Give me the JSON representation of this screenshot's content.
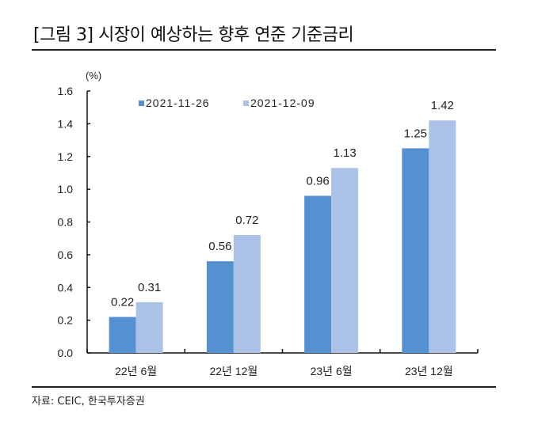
{
  "title": "[그림 3] 시장이 예상하는 향후 연준 기준금리",
  "source": "자료: CEIC, 한국투자증권",
  "chart_data": {
    "type": "bar",
    "title": "",
    "ylabel": "(%)",
    "xlabel": "",
    "ylim": [
      0,
      1.6
    ],
    "yticks": [
      "0.0",
      "0.2",
      "0.4",
      "0.6",
      "0.8",
      "1.0",
      "1.2",
      "1.4",
      "1.6"
    ],
    "categories": [
      "22년 6월",
      "22년 12월",
      "23년 6월",
      "23년 12월"
    ],
    "series": [
      {
        "name": "2021-11-26",
        "color": "#5591d0",
        "values": [
          0.22,
          0.56,
          0.96,
          1.25
        ],
        "labels": [
          "0.22",
          "0.56",
          "0.96",
          "1.25"
        ]
      },
      {
        "name": "2021-12-09",
        "color": "#abc2e6",
        "values": [
          0.31,
          0.72,
          1.13,
          1.42
        ],
        "labels": [
          "0.31",
          "0.72",
          "1.13",
          "1.42"
        ]
      }
    ],
    "legend": "top-left",
    "grid": false
  }
}
